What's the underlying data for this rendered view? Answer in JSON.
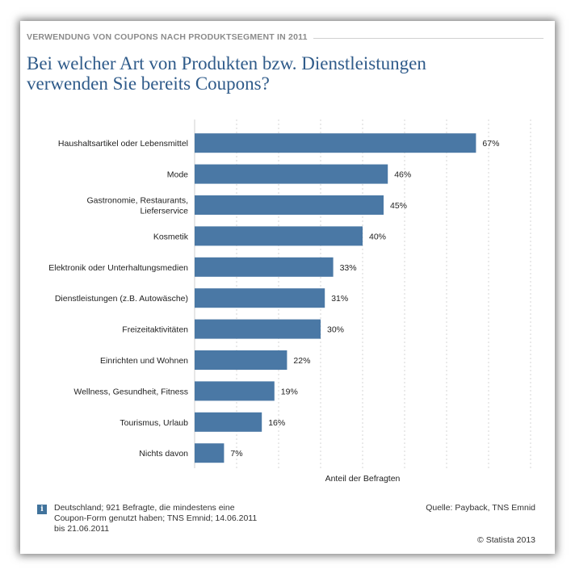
{
  "header": {
    "kicker": "VERWENDUNG VON COUPONS NACH PRODUKTSEGMENT IN 2011",
    "title_line1": "Bei welcher Art von Produkten bzw. Dienstleistungen",
    "title_line2": "verwenden Sie bereits Coupons?"
  },
  "chart_data": {
    "type": "bar",
    "orientation": "horizontal",
    "categories": [
      [
        "Haushaltsartikel oder Lebensmittel"
      ],
      [
        "Mode"
      ],
      [
        "Gastronomie, Restaurants,",
        "Lieferservice"
      ],
      [
        "Kosmetik"
      ],
      [
        "Elektronik oder Unterhaltungsmedien"
      ],
      [
        "Dienstleistungen (z.B. Autowäsche)"
      ],
      [
        "Freizeitaktivitäten"
      ],
      [
        "Einrichten und Wohnen"
      ],
      [
        "Wellness, Gesundheit, Fitness"
      ],
      [
        "Tourismus, Urlaub"
      ],
      [
        "Nichts davon"
      ]
    ],
    "values": [
      67,
      46,
      45,
      40,
      33,
      31,
      30,
      22,
      19,
      16,
      7
    ],
    "value_labels": [
      "67%",
      "46%",
      "45%",
      "40%",
      "33%",
      "31%",
      "30%",
      "22%",
      "19%",
      "16%",
      "7%"
    ],
    "xlabel": "Anteil der Befragten",
    "xlim": [
      0,
      80
    ],
    "grid_step": 10,
    "grid": true,
    "bar_color": "#4a78a5"
  },
  "footer": {
    "note_icon": "info-icon",
    "note": "Deutschland; 921 Befragte, die mindestens eine Coupon-Form genutzt haben; TNS Emnid; 14.06.2011 bis 21.06.2011",
    "source": "Quelle: Payback, TNS Emnid",
    "copyright": "© Statista 2013"
  }
}
